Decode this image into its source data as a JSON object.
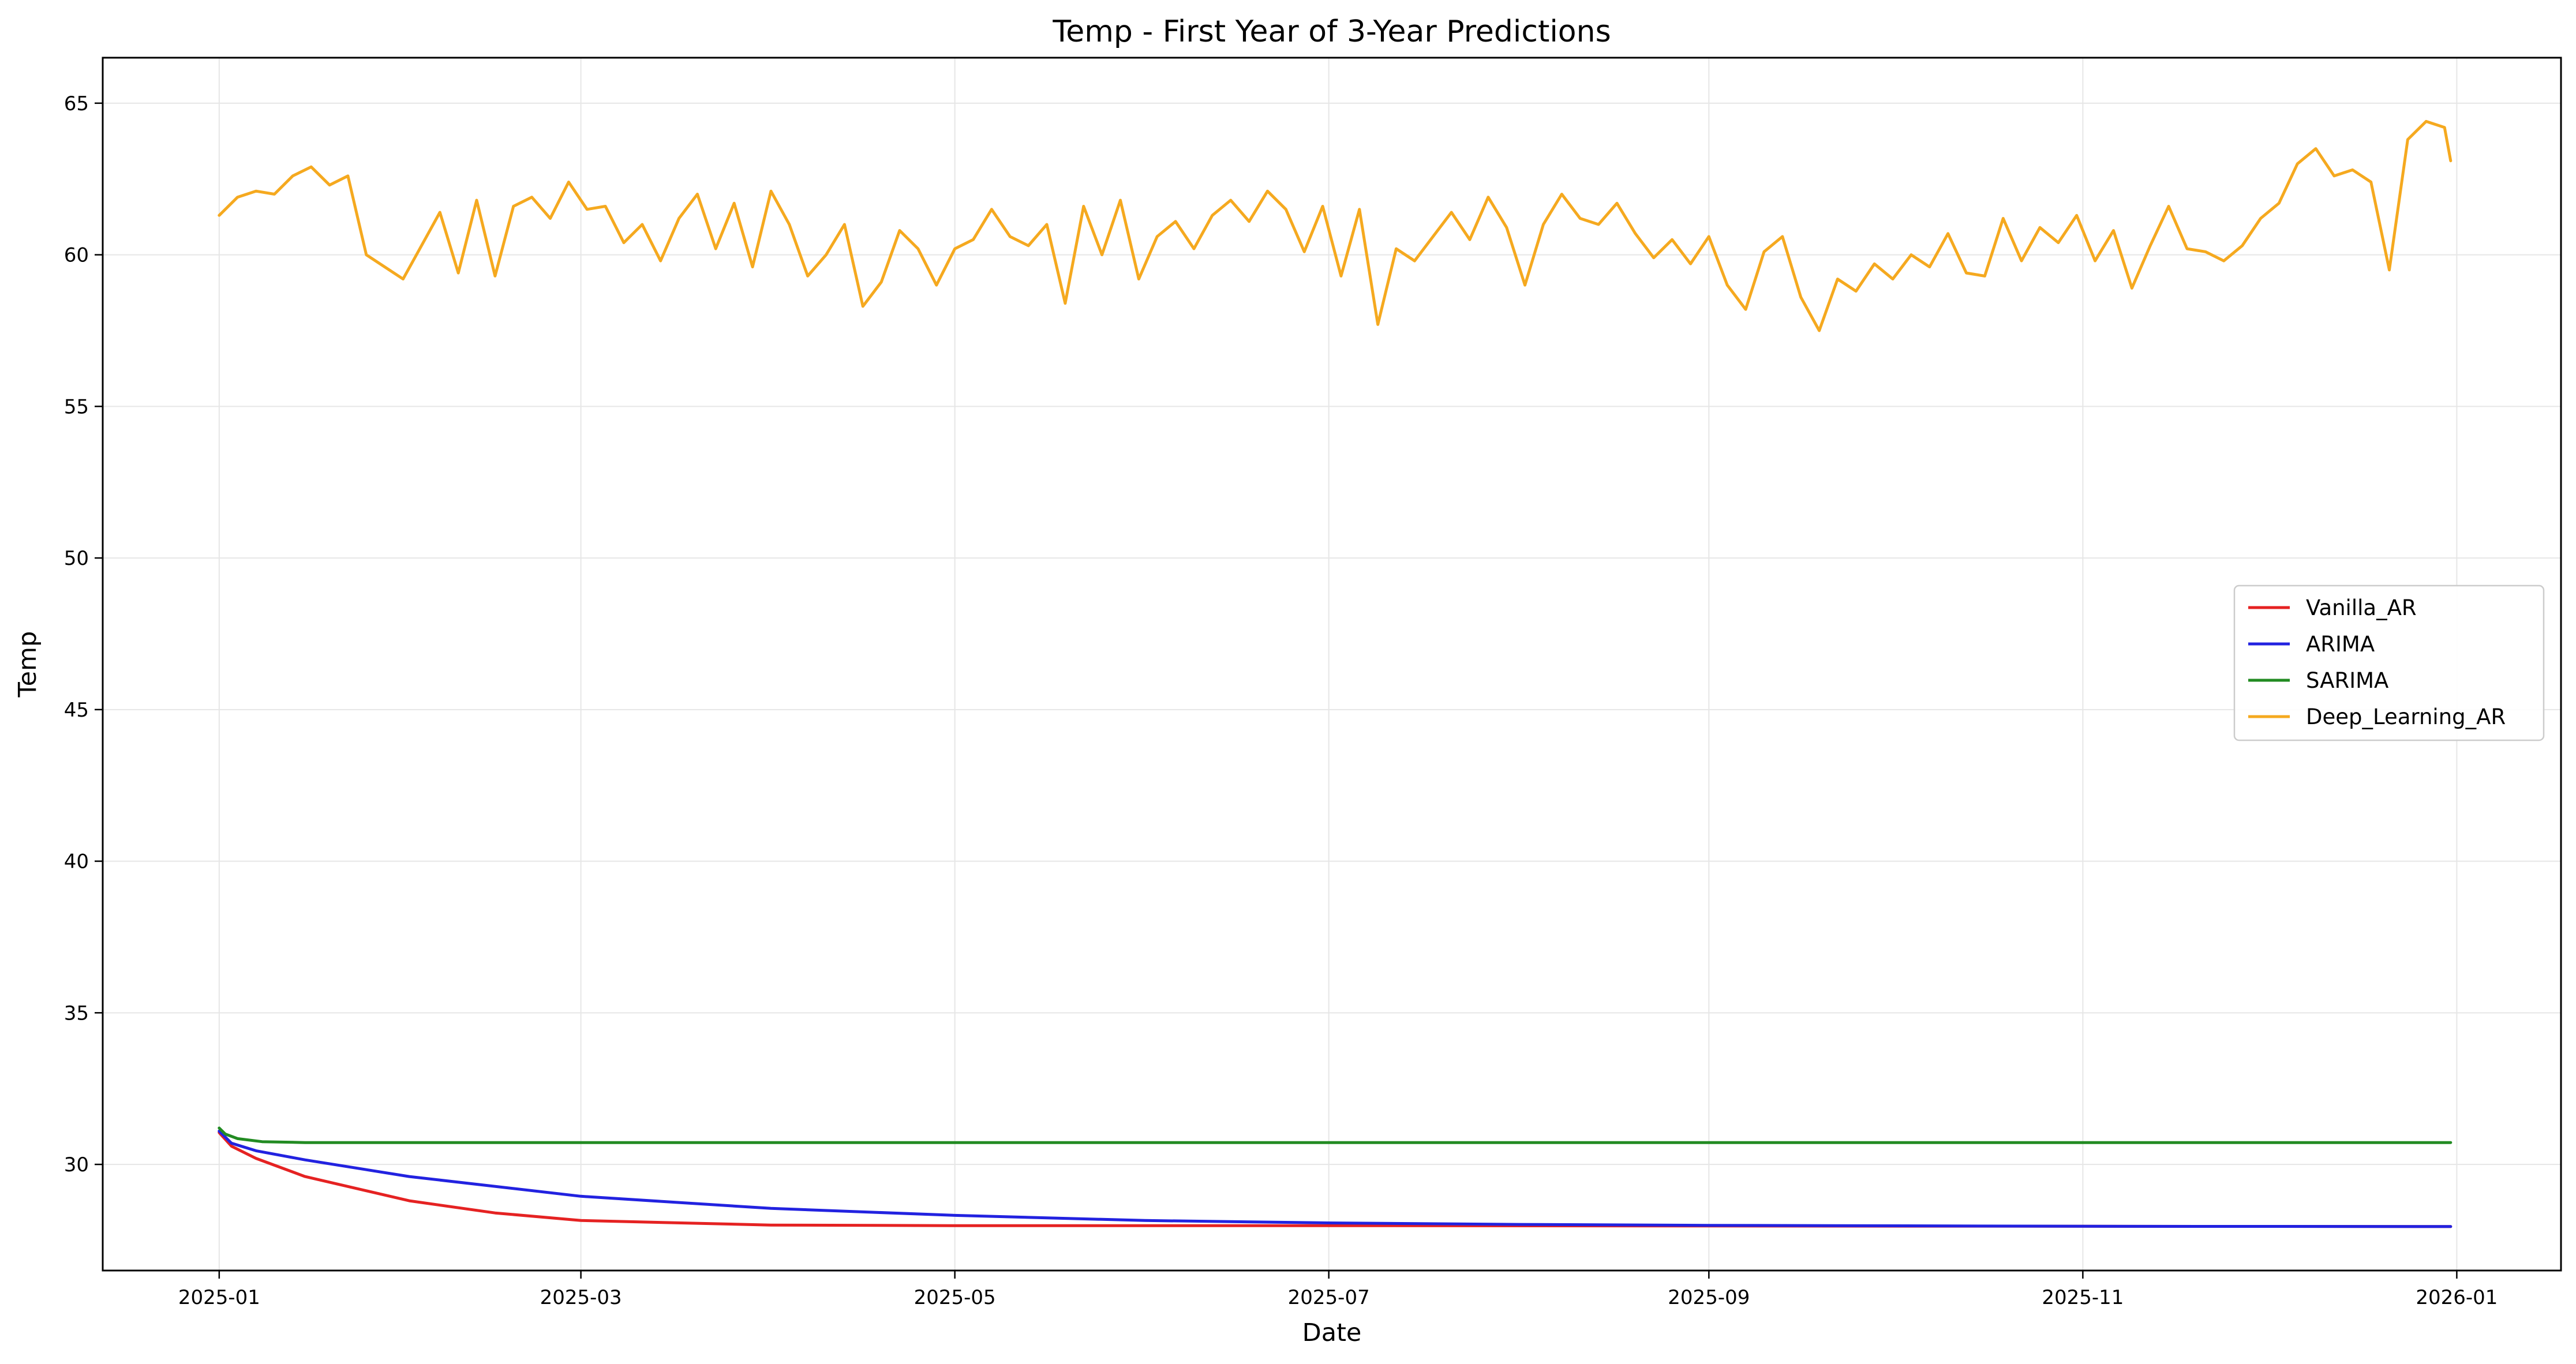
{
  "chart_data": {
    "type": "line",
    "title": "Temp - First Year of 3-Year Predictions",
    "xlabel": "Date",
    "ylabel": "Temp",
    "xlim": [
      "2024-12-13",
      "2026-01-18"
    ],
    "ylim": [
      26.5,
      66.5
    ],
    "x_start": "2025-01-01",
    "x_end": "2025-12-31",
    "x_tick_labels": [
      "2025-01",
      "2025-03",
      "2025-05",
      "2025-07",
      "2025-09",
      "2025-11",
      "2026-01"
    ],
    "x_tick_dates": [
      "2025-01-01",
      "2025-03-01",
      "2025-05-01",
      "2025-07-01",
      "2025-09-01",
      "2025-11-01",
      "2026-01-01"
    ],
    "y_ticks": [
      30,
      35,
      40,
      45,
      50,
      55,
      60,
      65
    ],
    "grid": true,
    "legend_position": "center-right",
    "series": [
      {
        "name": "Vanilla_AR",
        "color": "#e52222",
        "x": [
          "2025-01-01",
          "2025-01-03",
          "2025-01-07",
          "2025-01-15",
          "2025-02-01",
          "2025-02-15",
          "2025-03-01",
          "2025-04-01",
          "2025-05-01",
          "2025-07-01",
          "2025-09-01",
          "2025-11-01",
          "2025-12-31"
        ],
        "values": [
          31.05,
          30.6,
          30.2,
          29.6,
          28.8,
          28.4,
          28.15,
          28.0,
          27.98,
          27.98,
          27.97,
          27.96,
          27.95
        ]
      },
      {
        "name": "ARIMA",
        "color": "#2222e0",
        "x": [
          "2025-01-01",
          "2025-01-03",
          "2025-01-07",
          "2025-01-15",
          "2025-02-01",
          "2025-03-01",
          "2025-04-01",
          "2025-05-01",
          "2025-06-01",
          "2025-07-01",
          "2025-08-01",
          "2025-09-01",
          "2025-11-01",
          "2025-12-31"
        ],
        "values": [
          31.1,
          30.7,
          30.45,
          30.15,
          29.6,
          28.95,
          28.55,
          28.32,
          28.15,
          28.07,
          28.02,
          27.99,
          27.96,
          27.95
        ]
      },
      {
        "name": "SARIMA",
        "color": "#228b22",
        "x": [
          "2025-01-01",
          "2025-01-02",
          "2025-01-04",
          "2025-01-08",
          "2025-01-15",
          "2025-12-31"
        ],
        "values": [
          31.2,
          31.0,
          30.85,
          30.75,
          30.72,
          30.72
        ]
      },
      {
        "name": "Deep_Learning_AR",
        "color": "#f5a91f",
        "x": [
          "2025-01-01",
          "2025-01-04",
          "2025-01-07",
          "2025-01-10",
          "2025-01-13",
          "2025-01-16",
          "2025-01-19",
          "2025-01-22",
          "2025-01-25",
          "2025-01-28",
          "2025-01-31",
          "2025-02-03",
          "2025-02-06",
          "2025-02-09",
          "2025-02-12",
          "2025-02-15",
          "2025-02-18",
          "2025-02-21",
          "2025-02-24",
          "2025-02-27",
          "2025-03-02",
          "2025-03-05",
          "2025-03-08",
          "2025-03-11",
          "2025-03-14",
          "2025-03-17",
          "2025-03-20",
          "2025-03-23",
          "2025-03-26",
          "2025-03-29",
          "2025-04-01",
          "2025-04-04",
          "2025-04-07",
          "2025-04-10",
          "2025-04-13",
          "2025-04-16",
          "2025-04-19",
          "2025-04-22",
          "2025-04-25",
          "2025-04-28",
          "2025-05-01",
          "2025-05-04",
          "2025-05-07",
          "2025-05-10",
          "2025-05-13",
          "2025-05-16",
          "2025-05-19",
          "2025-05-22",
          "2025-05-25",
          "2025-05-28",
          "2025-05-31",
          "2025-06-03",
          "2025-06-06",
          "2025-06-09",
          "2025-06-12",
          "2025-06-15",
          "2025-06-18",
          "2025-06-21",
          "2025-06-24",
          "2025-06-27",
          "2025-06-30",
          "2025-07-03",
          "2025-07-06",
          "2025-07-09",
          "2025-07-12",
          "2025-07-15",
          "2025-07-18",
          "2025-07-21",
          "2025-07-24",
          "2025-07-27",
          "2025-07-30",
          "2025-08-02",
          "2025-08-05",
          "2025-08-08",
          "2025-08-11",
          "2025-08-14",
          "2025-08-17",
          "2025-08-20",
          "2025-08-23",
          "2025-08-26",
          "2025-08-29",
          "2025-09-01",
          "2025-09-04",
          "2025-09-07",
          "2025-09-10",
          "2025-09-13",
          "2025-09-16",
          "2025-09-19",
          "2025-09-22",
          "2025-09-25",
          "2025-09-28",
          "2025-10-01",
          "2025-10-04",
          "2025-10-07",
          "2025-10-10",
          "2025-10-13",
          "2025-10-16",
          "2025-10-19",
          "2025-10-22",
          "2025-10-25",
          "2025-10-28",
          "2025-10-31",
          "2025-11-03",
          "2025-11-06",
          "2025-11-09",
          "2025-11-12",
          "2025-11-15",
          "2025-11-18",
          "2025-11-21",
          "2025-11-24",
          "2025-11-27",
          "2025-11-30",
          "2025-12-03",
          "2025-12-06",
          "2025-12-09",
          "2025-12-12",
          "2025-12-15",
          "2025-12-18",
          "2025-12-21",
          "2025-12-24",
          "2025-12-27",
          "2025-12-30",
          "2025-12-31"
        ],
        "values": [
          61.3,
          61.9,
          62.1,
          62.0,
          62.6,
          62.9,
          62.3,
          62.6,
          60.0,
          59.6,
          59.2,
          60.3,
          61.4,
          59.4,
          61.8,
          59.3,
          61.6,
          61.9,
          61.2,
          62.4,
          61.5,
          61.6,
          60.4,
          61.0,
          59.8,
          61.2,
          62.0,
          60.2,
          61.7,
          59.6,
          62.1,
          61.0,
          59.3,
          60.0,
          61.0,
          58.3,
          59.1,
          60.8,
          60.2,
          59.0,
          60.2,
          60.5,
          61.5,
          60.6,
          60.3,
          61.0,
          58.4,
          61.6,
          60.0,
          61.8,
          59.2,
          60.6,
          61.1,
          60.2,
          61.3,
          61.8,
          61.1,
          62.1,
          61.5,
          60.1,
          61.6,
          59.3,
          61.5,
          57.7,
          60.2,
          59.8,
          60.6,
          61.4,
          60.5,
          61.9,
          60.9,
          59.0,
          61.0,
          62.0,
          61.2,
          61.0,
          61.7,
          60.7,
          59.9,
          60.5,
          59.7,
          60.6,
          59.0,
          58.2,
          60.1,
          60.6,
          58.6,
          57.5,
          59.2,
          58.8,
          59.7,
          59.2,
          60.0,
          59.6,
          60.7,
          59.4,
          59.3,
          61.2,
          59.8,
          60.9,
          60.4,
          61.3,
          59.8,
          60.8,
          58.9,
          60.3,
          61.6,
          60.2,
          60.1,
          59.8,
          60.3,
          61.2,
          61.7,
          63.0,
          63.5,
          62.6,
          62.8,
          62.4,
          59.5,
          63.8,
          64.4,
          64.2,
          63.1
        ]
      }
    ]
  }
}
